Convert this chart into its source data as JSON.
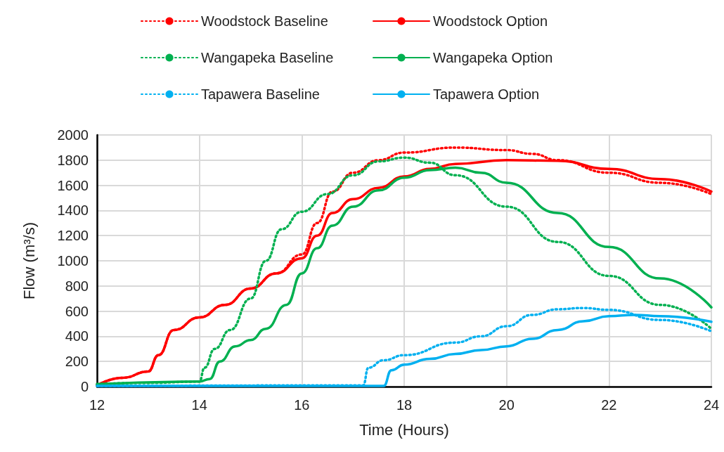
{
  "chart_data": {
    "type": "line",
    "xlabel": "Time (Hours)",
    "ylabel": "Flow (m³/s)",
    "xlim": [
      12,
      24
    ],
    "xticks": [
      12,
      14,
      16,
      18,
      20,
      22,
      24
    ],
    "ylim": [
      0,
      2000
    ],
    "yticks": [
      0,
      200,
      400,
      600,
      800,
      1000,
      1200,
      1400,
      1600,
      1800,
      2000
    ],
    "grid": true,
    "legend": "top",
    "marker": "none",
    "series": [
      {
        "name": "Woodstock Baseline",
        "color": "#ff0000",
        "line_style": "dotted",
        "x": [
          12,
          12.5,
          13,
          13.2,
          13.5,
          14,
          14.5,
          15,
          15.5,
          16,
          16.3,
          16.6,
          17,
          17.5,
          18,
          19,
          20,
          20.5,
          21,
          22,
          23,
          24
        ],
        "values": [
          10,
          70,
          120,
          250,
          450,
          550,
          650,
          780,
          900,
          1050,
          1300,
          1550,
          1700,
          1800,
          1860,
          1900,
          1880,
          1850,
          1800,
          1700,
          1620,
          1530
        ]
      },
      {
        "name": "Woodstock Option",
        "color": "#ff0000",
        "line_style": "solid",
        "x": [
          12,
          12.5,
          13,
          13.2,
          13.5,
          14,
          14.5,
          15,
          15.5,
          16,
          16.3,
          16.6,
          17,
          17.5,
          18,
          18.5,
          19,
          20,
          21,
          22,
          23,
          24
        ],
        "values": [
          10,
          70,
          120,
          250,
          450,
          550,
          650,
          780,
          900,
          1020,
          1200,
          1380,
          1490,
          1580,
          1670,
          1730,
          1770,
          1800,
          1795,
          1730,
          1650,
          1550
        ]
      },
      {
        "name": "Wangapeka Baseline",
        "color": "#00b050",
        "line_style": "dotted",
        "x": [
          12,
          13,
          14,
          14.1,
          14.3,
          14.6,
          15,
          15.3,
          15.6,
          16,
          16.5,
          17,
          17.5,
          18,
          18.5,
          19,
          20,
          21,
          22,
          23,
          24
        ],
        "values": [
          20,
          30,
          40,
          150,
          300,
          450,
          700,
          1000,
          1250,
          1390,
          1530,
          1680,
          1790,
          1820,
          1780,
          1680,
          1430,
          1150,
          880,
          650,
          460
        ]
      },
      {
        "name": "Wangapeka Option",
        "color": "#00b050",
        "line_style": "solid",
        "x": [
          12,
          14,
          14.2,
          14.4,
          14.7,
          15,
          15.3,
          15.7,
          16,
          16.3,
          16.6,
          17,
          17.5,
          18,
          18.5,
          19,
          19.5,
          20,
          21,
          22,
          23,
          24
        ],
        "values": [
          20,
          40,
          60,
          200,
          320,
          370,
          460,
          650,
          900,
          1100,
          1280,
          1430,
          1560,
          1660,
          1720,
          1740,
          1700,
          1620,
          1380,
          1110,
          860,
          630
        ]
      },
      {
        "name": "Tapawera Baseline",
        "color": "#00b0f0",
        "line_style": "dotted",
        "x": [
          12,
          17.2,
          17.3,
          17.6,
          18,
          19,
          19.5,
          20,
          20.5,
          21,
          21.5,
          22,
          23,
          24
        ],
        "values": [
          5,
          10,
          150,
          210,
          250,
          350,
          400,
          480,
          570,
          615,
          625,
          610,
          530,
          440
        ]
      },
      {
        "name": "Tapawera Option",
        "color": "#00b0f0",
        "line_style": "solid",
        "x": [
          12,
          17.6,
          17.75,
          18,
          18.5,
          19,
          19.5,
          20,
          20.5,
          21,
          21.5,
          22,
          22.5,
          23,
          24
        ],
        "values": [
          5,
          5,
          130,
          175,
          220,
          260,
          290,
          320,
          380,
          450,
          520,
          560,
          570,
          560,
          515
        ]
      }
    ]
  }
}
